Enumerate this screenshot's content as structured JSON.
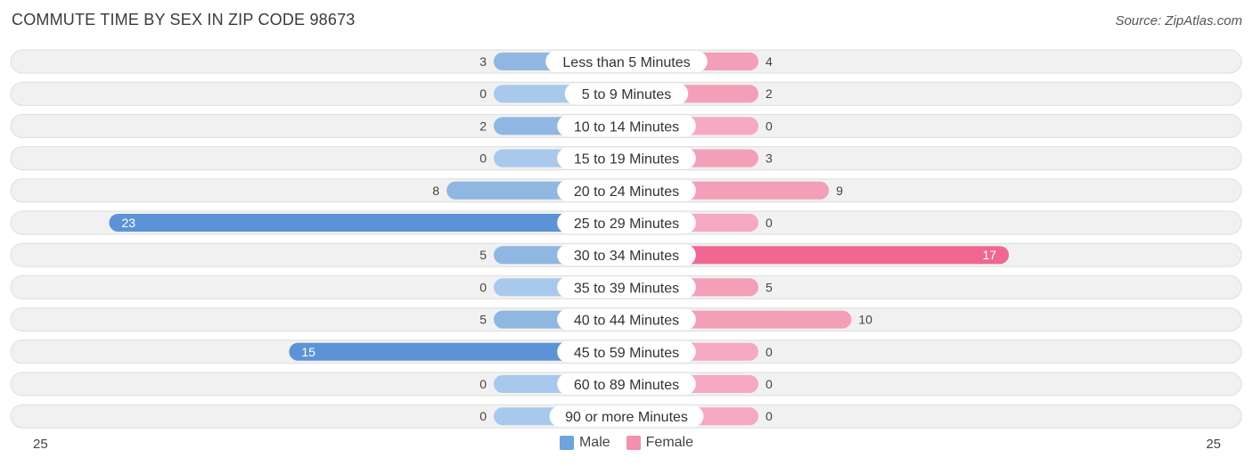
{
  "header": {
    "title": "COMMUTE TIME BY SEX IN ZIP CODE 98673",
    "source": "Source: ZipAtlas.com"
  },
  "axis": {
    "left_label": "25",
    "right_label": "25"
  },
  "legend": {
    "male_label": "Male",
    "female_label": "Female"
  },
  "colors": {
    "male": "#6fa3dc",
    "male_strong": "#5b93d6",
    "male_light": "#a9c9ec",
    "female": "#f290ad",
    "female_strong": "#f06791",
    "female_light": "#f6a9c1",
    "row_bg": "#f1f1f1",
    "row_border": "#dedede"
  },
  "chart_data": {
    "type": "bar",
    "orientation": "horizontal-diverging",
    "title": "COMMUTE TIME BY SEX IN ZIP CODE 98673",
    "xlim": [
      -25,
      25
    ],
    "categories": [
      "Less than 5 Minutes",
      "5 to 9 Minutes",
      "10 to 14 Minutes",
      "15 to 19 Minutes",
      "20 to 24 Minutes",
      "25 to 29 Minutes",
      "30 to 34 Minutes",
      "35 to 39 Minutes",
      "40 to 44 Minutes",
      "45 to 59 Minutes",
      "60 to 89 Minutes",
      "90 or more Minutes"
    ],
    "series": [
      {
        "name": "Male",
        "values": [
          3,
          0,
          2,
          0,
          8,
          23,
          5,
          0,
          5,
          15,
          0,
          0
        ]
      },
      {
        "name": "Female",
        "values": [
          4,
          2,
          0,
          3,
          9,
          0,
          17,
          5,
          10,
          0,
          0,
          0
        ]
      }
    ],
    "legend_position": "bottom-center"
  }
}
